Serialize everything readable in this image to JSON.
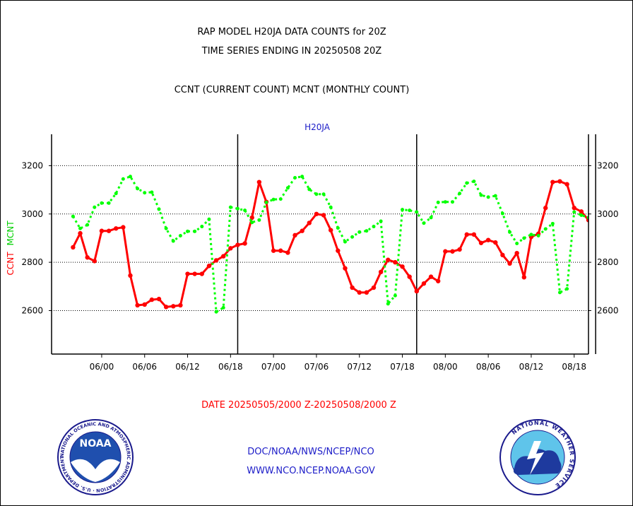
{
  "header": {
    "line1": "RAP MODEL H20JA DATA COUNTS for 20Z",
    "line2": "TIME SERIES ENDING IN 20250508 20Z",
    "line3": "CCNT (CURRENT COUNT) MCNT (MONTHLY COUNT)"
  },
  "footer": {
    "date_range": "DATE 20250505/2000 Z-20250508/2000 Z",
    "org": "DOC/NOAA/NWS/NCEP/NCO",
    "url": "WWW.NCO.NCEP.NOAA.GOV"
  },
  "logos": {
    "left": {
      "center_text": "NOAA",
      "ring_text": "NATIONAL OCEANIC AND ATMOSPHERIC ADMINISTRATION · U.S. DEPARTMENT OF COMMERCE"
    },
    "right": {
      "ring_text": "NATIONAL WEATHER SERVICE"
    }
  },
  "chart_data": {
    "type": "line",
    "title": "H20JA",
    "ylabel_ccnt": "CCNT",
    "ylabel_mcnt": "MCNT",
    "ylim": [
      2420,
      3330
    ],
    "yticks": [
      2600,
      2800,
      3000,
      3200
    ],
    "xlim": [
      -7,
      68
    ],
    "xticks": [
      {
        "x": 0,
        "label": "06/00"
      },
      {
        "x": 6,
        "label": "06/06"
      },
      {
        "x": 12,
        "label": "06/12"
      },
      {
        "x": 18,
        "label": "06/18"
      },
      {
        "x": 24,
        "label": "07/00"
      },
      {
        "x": 30,
        "label": "07/06"
      },
      {
        "x": 36,
        "label": "07/12"
      },
      {
        "x": 42,
        "label": "07/18"
      },
      {
        "x": 48,
        "label": "08/00"
      },
      {
        "x": 54,
        "label": "08/06"
      },
      {
        "x": 60,
        "label": "08/12"
      },
      {
        "x": 66,
        "label": "08/18"
      }
    ],
    "day_boundaries": [
      19,
      44,
      69
    ],
    "grid": true,
    "x_start_hour": -4,
    "colors": {
      "ccnt": "#ff0000",
      "mcnt": "#00ff00",
      "title": "#1c1cc8"
    },
    "series": [
      {
        "name": "CCNT",
        "style": "solid",
        "values": [
          2862,
          2920,
          2820,
          2805,
          2930,
          2930,
          2940,
          2945,
          2745,
          2622,
          2625,
          2645,
          2648,
          2615,
          2618,
          2622,
          2752,
          2752,
          2752,
          2785,
          2808,
          2825,
          2858,
          2872,
          2878,
          2985,
          3132,
          3050,
          2848,
          2848,
          2840,
          2912,
          2930,
          2963,
          3000,
          2995,
          2933,
          2848,
          2775,
          2695,
          2675,
          2675,
          2695,
          2760,
          2810,
          2800,
          2782,
          2740,
          2680,
          2712,
          2740,
          2722,
          2845,
          2845,
          2853,
          2915,
          2915,
          2880,
          2892,
          2882,
          2830,
          2795,
          2838,
          2738,
          2905,
          2918,
          3025,
          3132,
          3135,
          3123,
          3025,
          3010,
          2975
        ]
      },
      {
        "name": "MCNT",
        "style": "dotted",
        "values": [
          2990,
          2940,
          2955,
          3028,
          3045,
          3045,
          3085,
          3145,
          3155,
          3105,
          3088,
          3090,
          3020,
          2940,
          2888,
          2910,
          2928,
          2928,
          2948,
          2978,
          2595,
          2612,
          3028,
          3022,
          3015,
          2965,
          2975,
          3048,
          3060,
          3062,
          3108,
          3150,
          3155,
          3102,
          3082,
          3082,
          3028,
          2942,
          2885,
          2905,
          2925,
          2930,
          2948,
          2970,
          2628,
          2662,
          3018,
          3015,
          3008,
          2962,
          2985,
          3048,
          3050,
          3050,
          3085,
          3128,
          3135,
          3078,
          3070,
          3075,
          3002,
          2925,
          2878,
          2900,
          2915,
          2910,
          2938,
          2960,
          2675,
          2690,
          3008,
          2995,
          2985
        ]
      }
    ]
  }
}
